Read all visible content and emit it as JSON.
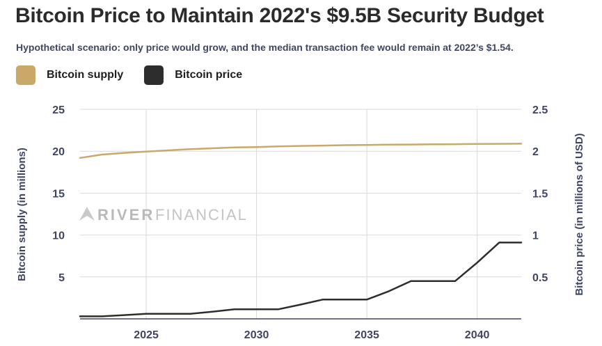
{
  "chart_data": {
    "type": "line",
    "title": "Bitcoin Price to Maintain 2022's $9.5B Security Budget",
    "subtitle": "Hypothetical scenario: only price would grow, and the median transaction fee would remain at 2022’s $1.54.",
    "x": [
      2022,
      2023,
      2024,
      2025,
      2026,
      2027,
      2028,
      2029,
      2030,
      2031,
      2032,
      2033,
      2034,
      2035,
      2036,
      2037,
      2038,
      2039,
      2040,
      2041,
      2042
    ],
    "x_ticks": [
      2025,
      2030,
      2035,
      2040
    ],
    "xlim": [
      2022,
      2042
    ],
    "series": [
      {
        "name": "Bitcoin supply",
        "axis": "left",
        "color": "#c9a86a",
        "values": [
          19.2,
          19.6,
          19.8,
          19.95,
          20.1,
          20.25,
          20.35,
          20.45,
          20.5,
          20.57,
          20.63,
          20.67,
          20.72,
          20.75,
          20.78,
          20.8,
          20.82,
          20.84,
          20.86,
          20.88,
          20.9
        ]
      },
      {
        "name": "Bitcoin price",
        "axis": "right",
        "color": "#2d2d2d",
        "values": [
          0.03,
          0.03,
          0.045,
          0.06,
          0.06,
          0.06,
          0.085,
          0.115,
          0.115,
          0.115,
          0.17,
          0.23,
          0.23,
          0.23,
          0.33,
          0.45,
          0.45,
          0.45,
          0.67,
          0.91,
          0.91
        ]
      }
    ],
    "y_left": {
      "label": "Bitcoin supply (in millions)",
      "ylim": [
        0,
        25
      ],
      "ticks": [
        5,
        10,
        15,
        20,
        25
      ]
    },
    "y_right": {
      "label": "Bitcoin price (in millions of USD)",
      "ylim": [
        0,
        2.5
      ],
      "ticks": [
        0.5,
        1,
        1.5,
        2,
        2.5
      ]
    },
    "grid": true,
    "legend": "top-left"
  },
  "watermark": {
    "brand": "RIVER",
    "suffix": "FINANCIAL"
  }
}
